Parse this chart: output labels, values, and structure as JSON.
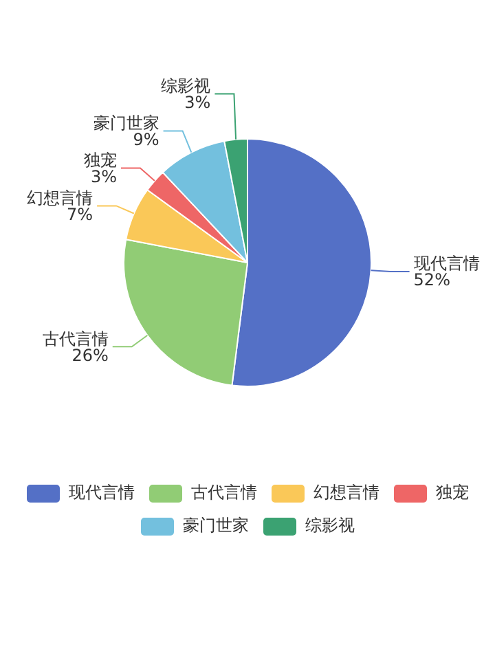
{
  "chart_data": {
    "type": "pie",
    "categories": [
      "现代言情",
      "古代言情",
      "幻想言情",
      "独宠",
      "豪门世家",
      "综影视"
    ],
    "values": [
      52,
      26,
      7,
      3,
      9,
      3
    ],
    "colors": [
      "#5470c6",
      "#91cc75",
      "#fac858",
      "#ee6666",
      "#73c0de",
      "#3ba272"
    ],
    "value_labels": [
      "52%",
      "26%",
      "7%",
      "3%",
      "9%",
      "3%"
    ],
    "legend": "bottom"
  }
}
